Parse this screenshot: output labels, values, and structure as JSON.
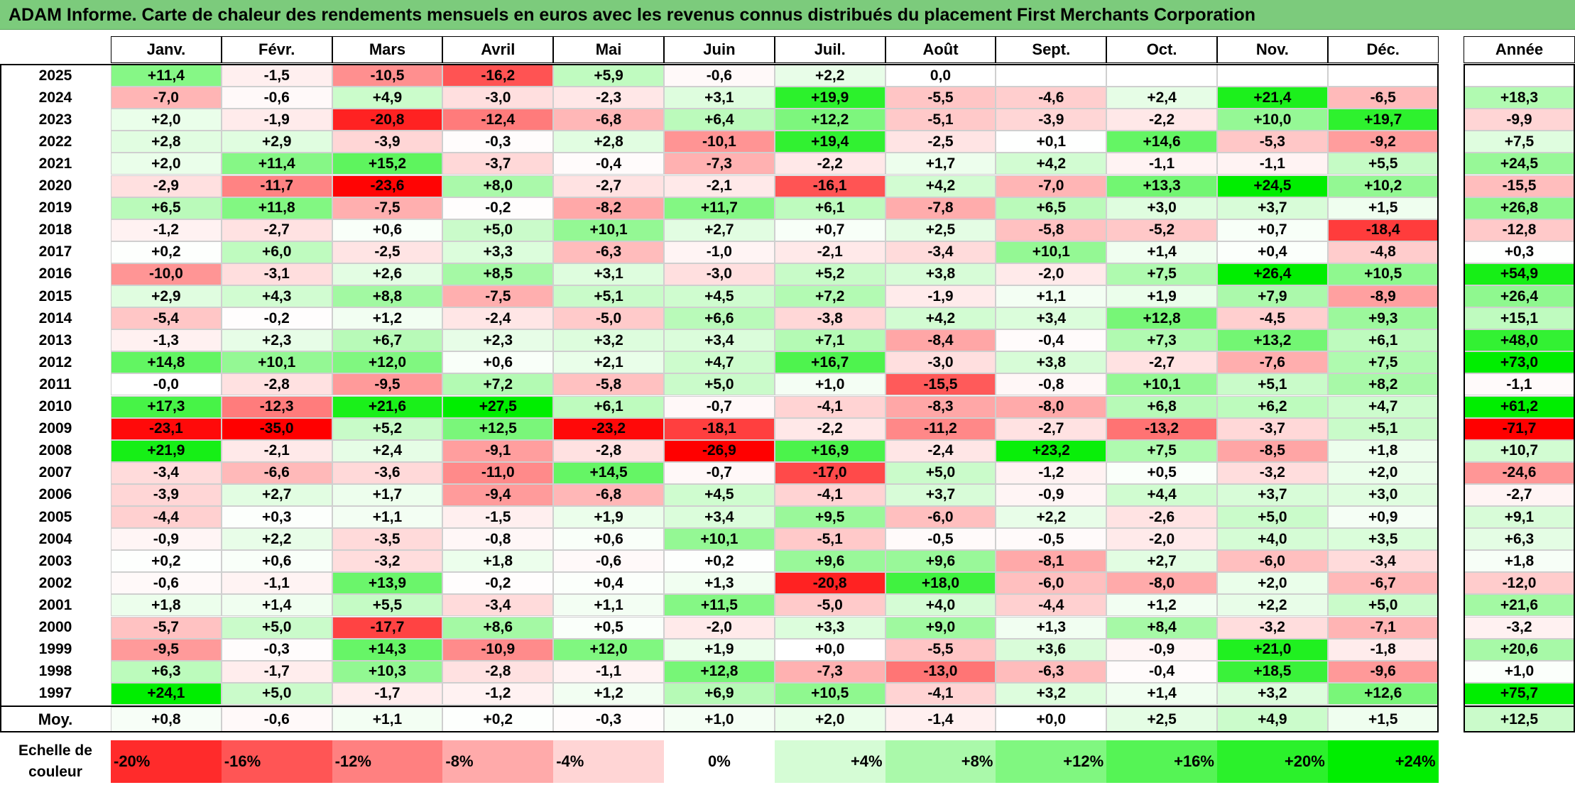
{
  "title": "ADAM Informe. Carte de chaleur des rendements mensuels en euros avec les revenus connus distribués du placement First Merchants Corporation",
  "colors": {
    "title_bar": "#7ccb7c",
    "negative_max": "#ff0000",
    "zero": "#ffffff",
    "positive_max": "#00ee00"
  },
  "chart_data": {
    "type": "heatmap",
    "months": [
      "Janv.",
      "Févr.",
      "Mars",
      "Avril",
      "Mai",
      "Juin",
      "Juil.",
      "Août",
      "Sept.",
      "Oct.",
      "Nov.",
      "Déc."
    ],
    "year_header": "Année",
    "rows": [
      {
        "year": "2025",
        "values": [
          "+11,4",
          "-1,5",
          "-10,5",
          "-16,2",
          "+5,9",
          "-0,6",
          "+2,2",
          "0,0",
          "",
          "",
          "",
          ""
        ],
        "annual": ""
      },
      {
        "year": "2024",
        "values": [
          "-7,0",
          "-0,6",
          "+4,9",
          "-3,0",
          "-2,3",
          "+3,1",
          "+19,9",
          "-5,5",
          "-4,6",
          "+2,4",
          "+21,4",
          "-6,5"
        ],
        "annual": "+18,3"
      },
      {
        "year": "2023",
        "values": [
          "+2,0",
          "-1,9",
          "-20,8",
          "-12,4",
          "-6,8",
          "+6,4",
          "+12,2",
          "-5,1",
          "-3,9",
          "-2,2",
          "+10,0",
          "+19,7"
        ],
        "annual": "-9,9"
      },
      {
        "year": "2022",
        "values": [
          "+2,8",
          "+2,9",
          "-3,9",
          "-0,3",
          "+2,8",
          "-10,1",
          "+19,4",
          "-2,5",
          "+0,1",
          "+14,6",
          "-5,3",
          "-9,2"
        ],
        "annual": "+7,5"
      },
      {
        "year": "2021",
        "values": [
          "+2,0",
          "+11,4",
          "+15,2",
          "-3,7",
          "-0,4",
          "-7,3",
          "-2,2",
          "+1,7",
          "+4,2",
          "-1,1",
          "-1,1",
          "+5,5"
        ],
        "annual": "+24,5"
      },
      {
        "year": "2020",
        "values": [
          "-2,9",
          "-11,7",
          "-23,6",
          "+8,0",
          "-2,7",
          "-2,1",
          "-16,1",
          "+4,2",
          "-7,0",
          "+13,3",
          "+24,5",
          "+10,2"
        ],
        "annual": "-15,5"
      },
      {
        "year": "2019",
        "values": [
          "+6,5",
          "+11,8",
          "-7,5",
          "-0,2",
          "-8,2",
          "+11,7",
          "+6,1",
          "-7,8",
          "+6,5",
          "+3,0",
          "+3,7",
          "+1,5"
        ],
        "annual": "+26,8"
      },
      {
        "year": "2018",
        "values": [
          "-1,2",
          "-2,7",
          "+0,6",
          "+5,0",
          "+10,1",
          "+2,7",
          "+0,7",
          "+2,5",
          "-5,8",
          "-5,2",
          "+0,7",
          "-18,4"
        ],
        "annual": "-12,8"
      },
      {
        "year": "2017",
        "values": [
          "+0,2",
          "+6,0",
          "-2,5",
          "+3,3",
          "-6,3",
          "-1,0",
          "-2,1",
          "-3,4",
          "+10,1",
          "+1,4",
          "+0,4",
          "-4,8"
        ],
        "annual": "+0,3"
      },
      {
        "year": "2016",
        "values": [
          "-10,0",
          "-3,1",
          "+2,6",
          "+8,5",
          "+3,1",
          "-3,0",
          "+5,2",
          "+3,8",
          "-2,0",
          "+7,5",
          "+26,4",
          "+10,5"
        ],
        "annual": "+54,9"
      },
      {
        "year": "2015",
        "values": [
          "+2,9",
          "+4,3",
          "+8,8",
          "-7,5",
          "+5,1",
          "+4,5",
          "+7,2",
          "-1,9",
          "+1,1",
          "+1,9",
          "+7,9",
          "-8,9"
        ],
        "annual": "+26,4"
      },
      {
        "year": "2014",
        "values": [
          "-5,4",
          "-0,2",
          "+1,2",
          "-2,4",
          "-5,0",
          "+6,6",
          "-3,8",
          "+4,2",
          "+3,4",
          "+12,8",
          "-4,5",
          "+9,3"
        ],
        "annual": "+15,1"
      },
      {
        "year": "2013",
        "values": [
          "-1,3",
          "+2,3",
          "+6,7",
          "+2,3",
          "+3,2",
          "+3,4",
          "+7,1",
          "-8,4",
          "-0,4",
          "+7,3",
          "+13,2",
          "+6,1"
        ],
        "annual": "+48,0"
      },
      {
        "year": "2012",
        "values": [
          "+14,8",
          "+10,1",
          "+12,0",
          "+0,6",
          "+2,1",
          "+4,7",
          "+16,7",
          "-3,0",
          "+3,8",
          "-2,7",
          "-7,6",
          "+7,5"
        ],
        "annual": "+73,0"
      },
      {
        "year": "2011",
        "values": [
          "-0,0",
          "-2,8",
          "-9,5",
          "+7,2",
          "-5,8",
          "+5,0",
          "+1,0",
          "-15,5",
          "-0,8",
          "+10,1",
          "+5,1",
          "+8,2"
        ],
        "annual": "-1,1"
      },
      {
        "year": "2010",
        "values": [
          "+17,3",
          "-12,3",
          "+21,6",
          "+27,5",
          "+6,1",
          "-0,7",
          "-4,1",
          "-8,3",
          "-8,0",
          "+6,8",
          "+6,2",
          "+4,7"
        ],
        "annual": "+61,2"
      },
      {
        "year": "2009",
        "values": [
          "-23,1",
          "-35,0",
          "+5,2",
          "+12,5",
          "-23,2",
          "-18,1",
          "-2,2",
          "-11,2",
          "-2,7",
          "-13,2",
          "-3,7",
          "+5,1"
        ],
        "annual": "-71,7"
      },
      {
        "year": "2008",
        "values": [
          "+21,9",
          "-2,1",
          "+2,4",
          "-9,1",
          "-2,8",
          "-26,9",
          "+16,9",
          "-2,4",
          "+23,2",
          "+7,5",
          "-8,5",
          "+1,8"
        ],
        "annual": "+10,7"
      },
      {
        "year": "2007",
        "values": [
          "-3,4",
          "-6,6",
          "-3,6",
          "-11,0",
          "+14,5",
          "-0,7",
          "-17,0",
          "+5,0",
          "-1,2",
          "+0,5",
          "-3,2",
          "+2,0"
        ],
        "annual": "-24,6"
      },
      {
        "year": "2006",
        "values": [
          "-3,9",
          "+2,7",
          "+1,7",
          "-9,4",
          "-6,8",
          "+4,5",
          "-4,1",
          "+3,7",
          "-0,9",
          "+4,4",
          "+3,7",
          "+3,0"
        ],
        "annual": "-2,7"
      },
      {
        "year": "2005",
        "values": [
          "-4,4",
          "+0,3",
          "+1,1",
          "-1,5",
          "+1,9",
          "+3,4",
          "+9,5",
          "-6,0",
          "+2,2",
          "-2,6",
          "+5,0",
          "+0,9"
        ],
        "annual": "+9,1"
      },
      {
        "year": "2004",
        "values": [
          "-0,9",
          "+2,2",
          "-3,5",
          "-0,8",
          "+0,6",
          "+10,1",
          "-5,1",
          "-0,5",
          "-0,5",
          "-2,0",
          "+4,0",
          "+3,5"
        ],
        "annual": "+6,3"
      },
      {
        "year": "2003",
        "values": [
          "+0,2",
          "+0,6",
          "-3,2",
          "+1,8",
          "-0,6",
          "+0,2",
          "+9,6",
          "+9,6",
          "-8,1",
          "+2,7",
          "-6,0",
          "-3,4"
        ],
        "annual": "+1,8"
      },
      {
        "year": "2002",
        "values": [
          "-0,6",
          "-1,1",
          "+13,9",
          "-0,2",
          "+0,4",
          "+1,3",
          "-20,8",
          "+18,0",
          "-6,0",
          "-8,0",
          "+2,0",
          "-6,7"
        ],
        "annual": "-12,0"
      },
      {
        "year": "2001",
        "values": [
          "+1,8",
          "+1,4",
          "+5,5",
          "-3,4",
          "+1,1",
          "+11,5",
          "-5,0",
          "+4,0",
          "-4,4",
          "+1,2",
          "+2,2",
          "+5,0"
        ],
        "annual": "+21,6"
      },
      {
        "year": "2000",
        "values": [
          "-5,7",
          "+5,0",
          "-17,7",
          "+8,6",
          "+0,5",
          "-2,0",
          "+3,3",
          "+9,0",
          "+1,3",
          "+8,4",
          "-3,2",
          "-7,1"
        ],
        "annual": "-3,2"
      },
      {
        "year": "1999",
        "values": [
          "-9,5",
          "-0,3",
          "+14,3",
          "-10,9",
          "+12,0",
          "+1,9",
          "+0,0",
          "-5,5",
          "+3,6",
          "-0,9",
          "+21,0",
          "-1,8"
        ],
        "annual": "+20,6"
      },
      {
        "year": "1998",
        "values": [
          "+6,3",
          "-1,7",
          "+10,3",
          "-2,8",
          "-1,1",
          "+12,8",
          "-7,3",
          "-13,0",
          "-6,3",
          "-0,4",
          "+18,5",
          "-9,6"
        ],
        "annual": "+1,0"
      },
      {
        "year": "1997",
        "values": [
          "+24,1",
          "+5,0",
          "-1,7",
          "-1,2",
          "+1,2",
          "+6,9",
          "+10,5",
          "-4,1",
          "+3,2",
          "+1,4",
          "+3,2",
          "+12,6"
        ],
        "annual": "+75,7"
      }
    ],
    "average": {
      "label": "Moy.",
      "values": [
        "+0,8",
        "-0,6",
        "+1,1",
        "+0,2",
        "-0,3",
        "+1,0",
        "+2,0",
        "-1,4",
        "+0,0",
        "+2,5",
        "+4,9",
        "+1,5"
      ],
      "annual": "+12,5"
    },
    "scale": {
      "label": "Echelle de couleur",
      "steps": [
        {
          "label": "-20%",
          "value": -20
        },
        {
          "label": "-16%",
          "value": -16
        },
        {
          "label": "-12%",
          "value": -12
        },
        {
          "label": "-8%",
          "value": -8
        },
        {
          "label": "-4%",
          "value": -4
        },
        {
          "label": "0%",
          "value": 0
        },
        {
          "label": "+4%",
          "value": 4
        },
        {
          "label": "+8%",
          "value": 8
        },
        {
          "label": "+12%",
          "value": 12
        },
        {
          "label": "+16%",
          "value": 16
        },
        {
          "label": "+20%",
          "value": 20
        },
        {
          "label": "+24%",
          "value": 24
        }
      ]
    }
  }
}
